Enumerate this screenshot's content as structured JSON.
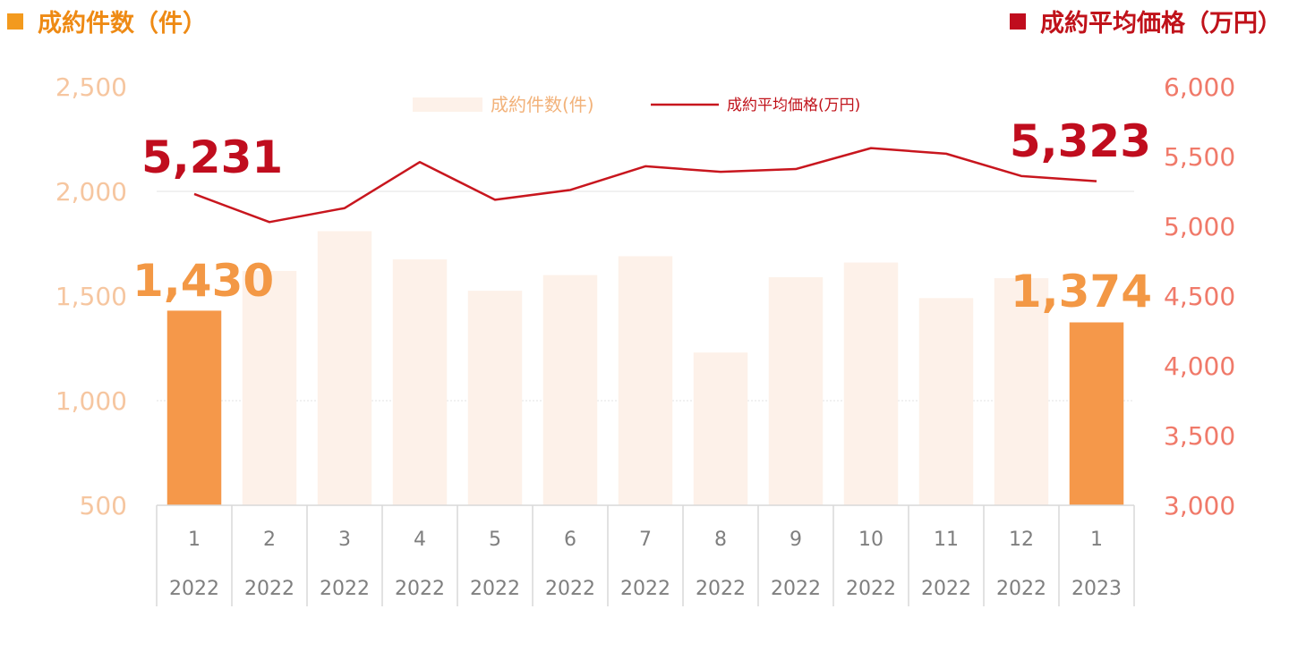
{
  "header": {
    "left_title": "成約件数（件）",
    "right_title": "成約平均価格（万円）"
  },
  "colors": {
    "bar_highlight": "#f5984a",
    "bar_faded": "#fdf1e9",
    "line": "#c8161e",
    "left_title": "#ee8a14",
    "right_title": "#c0121a"
  },
  "chart_data": {
    "type": "bar",
    "categories": [
      "1",
      "2",
      "3",
      "4",
      "5",
      "6",
      "7",
      "8",
      "9",
      "10",
      "11",
      "12",
      "1"
    ],
    "years": [
      "2022",
      "2022",
      "2022",
      "2022",
      "2022",
      "2022",
      "2022",
      "2022",
      "2022",
      "2022",
      "2022",
      "2022",
      "2023"
    ],
    "series": [
      {
        "name": "成約件数(件)",
        "type": "bar",
        "axis": "left",
        "values": [
          1430,
          1620,
          1810,
          1675,
          1525,
          1600,
          1690,
          1230,
          1590,
          1660,
          1490,
          1585,
          1374
        ],
        "highlighted": [
          0,
          12
        ]
      },
      {
        "name": "成約平均価格(万円)",
        "type": "line",
        "axis": "right",
        "values": [
          5231,
          5030,
          5130,
          5460,
          5190,
          5260,
          5430,
          5390,
          5410,
          5560,
          5520,
          5360,
          5323
        ]
      }
    ],
    "y_left": {
      "ticks": [
        "500",
        "1,000",
        "1,500",
        "2,000",
        "2,500"
      ],
      "range": [
        500,
        2500
      ]
    },
    "y_right": {
      "ticks": [
        "3,000",
        "3,500",
        "4,000",
        "4,500",
        "5,000",
        "5,500",
        "6,000"
      ],
      "range": [
        3000,
        6000
      ]
    },
    "legend": {
      "placement": "top-center",
      "bar_label": "成約件数(件)",
      "line_label": "成約平均価格(万円)"
    },
    "data_labels": {
      "bar_first": "1,430",
      "bar_last": "1,374",
      "line_first": "5,231",
      "line_last": "5,323"
    }
  }
}
